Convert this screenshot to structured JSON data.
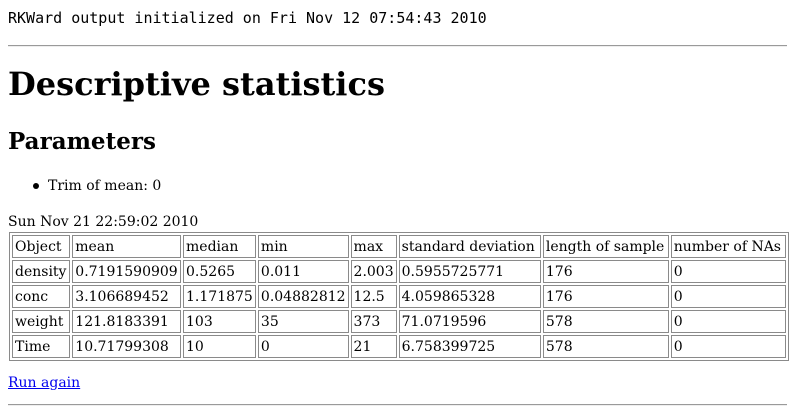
{
  "output": {
    "init_line": "RKWard output initialized on Fri Nov 12 07:54:43 2010",
    "title": "Descriptive statistics",
    "parameters_heading": "Parameters",
    "parameters": [
      "Trim of mean: 0"
    ],
    "timestamp": "Sun Nov 21 22:59:02 2010",
    "table": {
      "headers": [
        "Object",
        "mean",
        "median",
        "min",
        "max",
        "standard deviation",
        "length of sample",
        "number of NAs"
      ],
      "rows": [
        [
          "density",
          "0.7191590909",
          "0.5265",
          "0.011",
          "2.003",
          "0.5955725771",
          "176",
          "0"
        ],
        [
          "conc",
          "3.106689452",
          "1.171875",
          "0.04882812",
          "12.5",
          "4.059865328",
          "176",
          "0"
        ],
        [
          "weight",
          "121.8183391",
          "103",
          "35",
          "373",
          "71.0719596",
          "578",
          "0"
        ],
        [
          "Time",
          "10.71799308",
          "10",
          "0",
          "21",
          "6.758399725",
          "578",
          "0"
        ]
      ]
    },
    "run_again_label": "Run again"
  }
}
